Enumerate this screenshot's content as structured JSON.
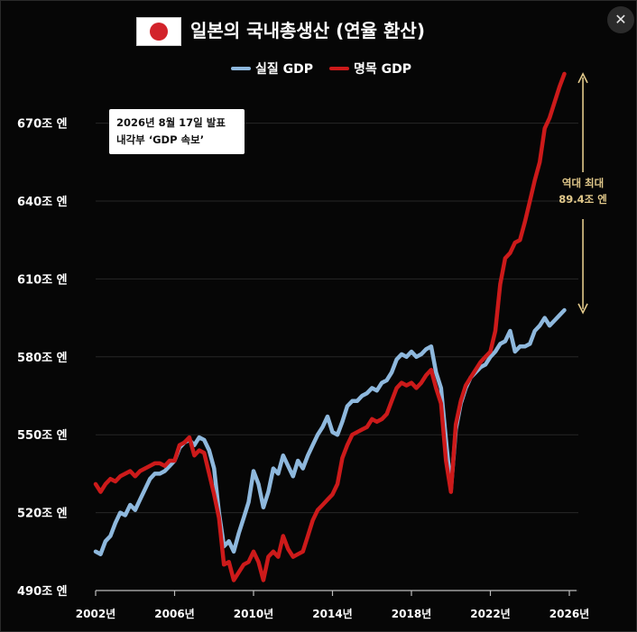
{
  "header": {
    "title": "일본의 국내총생산 (연율 환산)",
    "flag_icon": "japan-flag-icon",
    "close_icon": "close-icon",
    "close_label": "✕"
  },
  "info_box": {
    "line1": "2026년 8월 17일 발표",
    "line2": "내각부 ‘GDP 속보’"
  },
  "colors": {
    "real": "#8eb8dd",
    "nominal": "#cc1a1a",
    "annotation": "#e2c98b"
  },
  "chart_data": {
    "type": "line",
    "title": "일본의 국내총생산 (연율 환산)",
    "xlabel": "",
    "ylabel": "",
    "ylim": [
      490,
      690
    ],
    "xlim": [
      2002,
      2026
    ],
    "grid": true,
    "legend": "top-center",
    "y_ticks": [
      {
        "value": 490,
        "label": "490조 엔"
      },
      {
        "value": 520,
        "label": "520조 엔"
      },
      {
        "value": 550,
        "label": "550조 엔"
      },
      {
        "value": 580,
        "label": "580조 엔"
      },
      {
        "value": 610,
        "label": "610조 엔"
      },
      {
        "value": 640,
        "label": "640조 엔"
      },
      {
        "value": 670,
        "label": "670조 엔"
      }
    ],
    "x_ticks": [
      {
        "value": 2002,
        "label": "2002년"
      },
      {
        "value": 2006,
        "label": "2006년"
      },
      {
        "value": 2010,
        "label": "2010년"
      },
      {
        "value": 2014,
        "label": "2014년"
      },
      {
        "value": 2018,
        "label": "2018년"
      },
      {
        "value": 2022,
        "label": "2022년"
      },
      {
        "value": 2026,
        "label": "2026년"
      }
    ],
    "annotation": {
      "line1": "역대 최대",
      "line2": "89.4조 엔",
      "x": 2025.5,
      "y_from": 597,
      "y_to": 689
    },
    "series": [
      {
        "name": "실질 GDP",
        "values": [
          [
            2002.0,
            505
          ],
          [
            2002.25,
            504
          ],
          [
            2002.5,
            509
          ],
          [
            2002.75,
            511
          ],
          [
            2003.0,
            516
          ],
          [
            2003.25,
            520
          ],
          [
            2003.5,
            519
          ],
          [
            2003.75,
            523
          ],
          [
            2004.0,
            521
          ],
          [
            2004.25,
            525
          ],
          [
            2004.5,
            529
          ],
          [
            2004.75,
            533
          ],
          [
            2005.0,
            535
          ],
          [
            2005.25,
            535
          ],
          [
            2005.5,
            536
          ],
          [
            2005.75,
            538
          ],
          [
            2006.0,
            540
          ],
          [
            2006.25,
            545
          ],
          [
            2006.5,
            547
          ],
          [
            2006.75,
            548
          ],
          [
            2007.0,
            546
          ],
          [
            2007.25,
            549
          ],
          [
            2007.5,
            548
          ],
          [
            2007.75,
            544
          ],
          [
            2008.0,
            537
          ],
          [
            2008.25,
            520
          ],
          [
            2008.5,
            507
          ],
          [
            2008.75,
            509
          ],
          [
            2009.0,
            505
          ],
          [
            2009.25,
            512
          ],
          [
            2009.5,
            518
          ],
          [
            2009.75,
            524
          ],
          [
            2010.0,
            536
          ],
          [
            2010.25,
            531
          ],
          [
            2010.5,
            522
          ],
          [
            2010.75,
            528
          ],
          [
            2011.0,
            537
          ],
          [
            2011.25,
            535
          ],
          [
            2011.5,
            542
          ],
          [
            2011.75,
            538
          ],
          [
            2012.0,
            534
          ],
          [
            2012.25,
            540
          ],
          [
            2012.5,
            537
          ],
          [
            2012.75,
            542
          ],
          [
            2013.0,
            546
          ],
          [
            2013.25,
            550
          ],
          [
            2013.5,
            553
          ],
          [
            2013.75,
            557
          ],
          [
            2014.0,
            551
          ],
          [
            2014.25,
            550
          ],
          [
            2014.5,
            555
          ],
          [
            2014.75,
            561
          ],
          [
            2015.0,
            563
          ],
          [
            2015.25,
            563
          ],
          [
            2015.5,
            565
          ],
          [
            2015.75,
            566
          ],
          [
            2016.0,
            568
          ],
          [
            2016.25,
            567
          ],
          [
            2016.5,
            570
          ],
          [
            2016.75,
            571
          ],
          [
            2017.0,
            574
          ],
          [
            2017.25,
            579
          ],
          [
            2017.5,
            581
          ],
          [
            2017.75,
            580
          ],
          [
            2018.0,
            582
          ],
          [
            2018.25,
            580
          ],
          [
            2018.5,
            581
          ],
          [
            2018.75,
            583
          ],
          [
            2019.0,
            584
          ],
          [
            2019.25,
            574
          ],
          [
            2019.5,
            568
          ],
          [
            2019.75,
            548
          ],
          [
            2020.0,
            529
          ],
          [
            2020.25,
            552
          ],
          [
            2020.5,
            562
          ],
          [
            2020.75,
            568
          ],
          [
            2021.0,
            572
          ],
          [
            2021.25,
            574
          ],
          [
            2021.5,
            576
          ],
          [
            2021.75,
            577
          ],
          [
            2022.0,
            580
          ],
          [
            2022.25,
            582
          ],
          [
            2022.5,
            585
          ],
          [
            2022.75,
            586
          ],
          [
            2023.0,
            590
          ],
          [
            2023.25,
            582
          ],
          [
            2023.5,
            584
          ],
          [
            2023.75,
            584
          ],
          [
            2024.0,
            585
          ],
          [
            2024.25,
            590
          ],
          [
            2024.5,
            592
          ],
          [
            2024.75,
            595
          ],
          [
            2025.0,
            592
          ],
          [
            2025.25,
            594
          ],
          [
            2025.5,
            596
          ],
          [
            2025.75,
            598
          ]
        ]
      },
      {
        "name": "명목 GDP",
        "values": [
          [
            2002.0,
            531
          ],
          [
            2002.25,
            528
          ],
          [
            2002.5,
            531
          ],
          [
            2002.75,
            533
          ],
          [
            2003.0,
            532
          ],
          [
            2003.25,
            534
          ],
          [
            2003.5,
            535
          ],
          [
            2003.75,
            536
          ],
          [
            2004.0,
            534
          ],
          [
            2004.25,
            536
          ],
          [
            2004.5,
            537
          ],
          [
            2004.75,
            538
          ],
          [
            2005.0,
            539
          ],
          [
            2005.25,
            539
          ],
          [
            2005.5,
            538
          ],
          [
            2005.75,
            540
          ],
          [
            2006.0,
            540
          ],
          [
            2006.25,
            546
          ],
          [
            2006.5,
            547
          ],
          [
            2006.75,
            549
          ],
          [
            2007.0,
            542
          ],
          [
            2007.25,
            544
          ],
          [
            2007.5,
            543
          ],
          [
            2007.75,
            535
          ],
          [
            2008.0,
            527
          ],
          [
            2008.25,
            518
          ],
          [
            2008.5,
            500
          ],
          [
            2008.75,
            501
          ],
          [
            2009.0,
            494
          ],
          [
            2009.25,
            497
          ],
          [
            2009.5,
            500
          ],
          [
            2009.75,
            501
          ],
          [
            2010.0,
            505
          ],
          [
            2010.25,
            501
          ],
          [
            2010.5,
            494
          ],
          [
            2010.75,
            503
          ],
          [
            2011.0,
            505
          ],
          [
            2011.25,
            503
          ],
          [
            2011.5,
            511
          ],
          [
            2011.75,
            506
          ],
          [
            2012.0,
            503
          ],
          [
            2012.25,
            504
          ],
          [
            2012.5,
            505
          ],
          [
            2012.75,
            511
          ],
          [
            2013.0,
            517
          ],
          [
            2013.25,
            521
          ],
          [
            2013.5,
            523
          ],
          [
            2013.75,
            525
          ],
          [
            2014.0,
            527
          ],
          [
            2014.25,
            531
          ],
          [
            2014.5,
            541
          ],
          [
            2014.75,
            546
          ],
          [
            2015.0,
            550
          ],
          [
            2015.25,
            551
          ],
          [
            2015.5,
            552
          ],
          [
            2015.75,
            553
          ],
          [
            2016.0,
            556
          ],
          [
            2016.25,
            555
          ],
          [
            2016.5,
            556
          ],
          [
            2016.75,
            558
          ],
          [
            2017.0,
            563
          ],
          [
            2017.25,
            568
          ],
          [
            2017.5,
            570
          ],
          [
            2017.75,
            569
          ],
          [
            2018.0,
            570
          ],
          [
            2018.25,
            568
          ],
          [
            2018.5,
            570
          ],
          [
            2018.75,
            573
          ],
          [
            2019.0,
            575
          ],
          [
            2019.25,
            568
          ],
          [
            2019.5,
            562
          ],
          [
            2019.75,
            540
          ],
          [
            2020.0,
            528
          ],
          [
            2020.25,
            554
          ],
          [
            2020.5,
            563
          ],
          [
            2020.75,
            569
          ],
          [
            2021.0,
            572
          ],
          [
            2021.25,
            575
          ],
          [
            2021.5,
            578
          ],
          [
            2021.75,
            580
          ],
          [
            2022.0,
            582
          ],
          [
            2022.25,
            590
          ],
          [
            2022.5,
            608
          ],
          [
            2022.75,
            618
          ],
          [
            2023.0,
            620
          ],
          [
            2023.25,
            624
          ],
          [
            2023.5,
            625
          ],
          [
            2023.75,
            632
          ],
          [
            2024.0,
            640
          ],
          [
            2024.25,
            648
          ],
          [
            2024.5,
            655
          ],
          [
            2024.75,
            668
          ],
          [
            2025.0,
            672
          ],
          [
            2025.25,
            678
          ],
          [
            2025.5,
            684
          ],
          [
            2025.75,
            689
          ]
        ]
      }
    ]
  }
}
